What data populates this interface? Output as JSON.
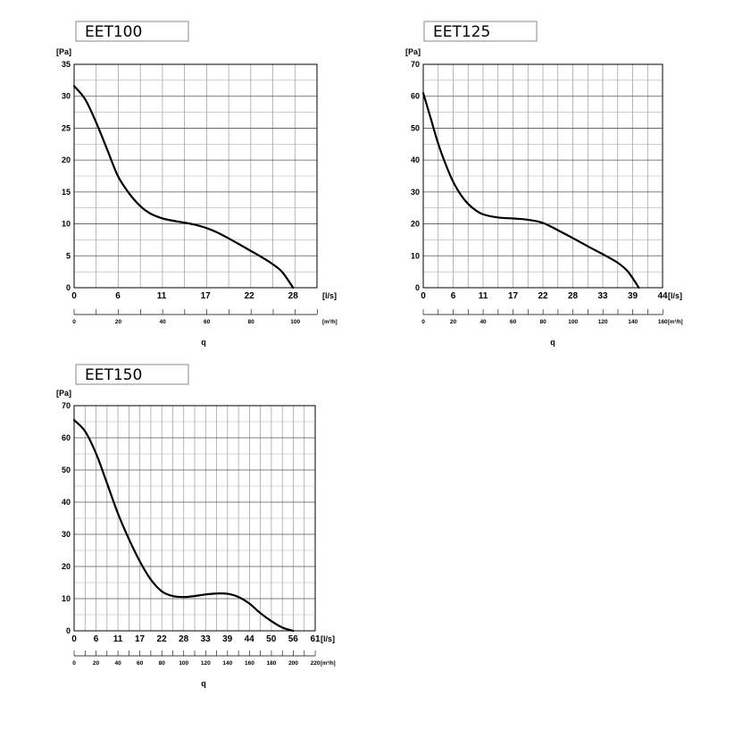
{
  "chart_data": [
    {
      "type": "line",
      "title": "EET100",
      "ylabel": "[Pa]",
      "xlabel": "[l/s]",
      "x2label": "[m³/h]",
      "axis_label": "q",
      "ylim": [
        0,
        35
      ],
      "yticks": [
        "0",
        "5",
        "10",
        "15",
        "20",
        "25",
        "30",
        "35"
      ],
      "xlim": [
        0,
        30.5
      ],
      "xticks": [
        {
          "value": 0,
          "label": "0"
        },
        {
          "value": 5.5,
          "label": "6"
        },
        {
          "value": 11,
          "label": "11"
        },
        {
          "value": 16.5,
          "label": "17"
        },
        {
          "value": 22,
          "label": "22"
        },
        {
          "value": 27.5,
          "label": "28"
        }
      ],
      "x2lim": [
        0,
        110
      ],
      "x2ticks": [
        "0",
        "20",
        "40",
        "60",
        "80",
        "100"
      ],
      "grid": true,
      "series": [
        {
          "x": [
            0,
            1.4,
            2.8,
            4.2,
            5.5,
            6.9,
            8.3,
            9.6,
            11,
            12.4,
            13.8,
            15.1,
            16.5,
            17.9,
            19.3,
            20.6,
            22,
            23.4,
            24.8,
            26.1,
            27.5
          ],
          "y": [
            31.6,
            29.5,
            25.8,
            21.5,
            17.5,
            14.8,
            12.8,
            11.6,
            10.9,
            10.5,
            10.2,
            9.9,
            9.4,
            8.7,
            7.8,
            6.9,
            5.9,
            4.9,
            3.8,
            2.5,
            0
          ]
        }
      ]
    },
    {
      "type": "line",
      "title": "EET125",
      "ylabel": "[Pa]",
      "xlabel": "[l/s]",
      "x2label": "[m³/h]",
      "axis_label": "q",
      "ylim": [
        0,
        70
      ],
      "yticks": [
        "0",
        "10",
        "20",
        "30",
        "40",
        "50",
        "60",
        "70"
      ],
      "xlim": [
        0,
        44.4
      ],
      "xticks": [
        {
          "value": 0,
          "label": "0"
        },
        {
          "value": 5.55,
          "label": "6"
        },
        {
          "value": 11.1,
          "label": "11"
        },
        {
          "value": 16.65,
          "label": "17"
        },
        {
          "value": 22.2,
          "label": "22"
        },
        {
          "value": 27.75,
          "label": "28"
        },
        {
          "value": 33.3,
          "label": "33"
        },
        {
          "value": 38.85,
          "label": "39"
        },
        {
          "value": 44.4,
          "label": "44"
        }
      ],
      "x2lim": [
        0,
        160
      ],
      "x2ticks": [
        "0",
        "20",
        "40",
        "60",
        "80",
        "100",
        "120",
        "140",
        "160"
      ],
      "grid": true,
      "series": [
        {
          "x": [
            0,
            1.4,
            2.8,
            4.2,
            5.6,
            7,
            8.3,
            9.7,
            11.1,
            13.9,
            16.7,
            19.4,
            22.2,
            25,
            27.8,
            30.5,
            33.3,
            36.1,
            38,
            40
          ],
          "y": [
            61,
            53,
            45,
            38.5,
            33,
            29,
            26.3,
            24.3,
            23,
            22,
            21.7,
            21.3,
            20.3,
            18,
            15.5,
            13,
            10.5,
            7.8,
            5,
            0
          ]
        }
      ]
    },
    {
      "type": "line",
      "title": "EET150",
      "ylabel": "[Pa]",
      "xlabel": "[l/s]",
      "x2label": "[m³/h]",
      "axis_label": "q",
      "ylim": [
        0,
        70
      ],
      "yticks": [
        "0",
        "10",
        "20",
        "30",
        "40",
        "50",
        "60",
        "70"
      ],
      "xlim": [
        0,
        61.1
      ],
      "xticks": [
        {
          "value": 0,
          "label": "0"
        },
        {
          "value": 5.55,
          "label": "6"
        },
        {
          "value": 11.1,
          "label": "11"
        },
        {
          "value": 16.65,
          "label": "17"
        },
        {
          "value": 22.2,
          "label": "22"
        },
        {
          "value": 27.75,
          "label": "28"
        },
        {
          "value": 33.3,
          "label": "33"
        },
        {
          "value": 38.85,
          "label": "39"
        },
        {
          "value": 44.4,
          "label": "44"
        },
        {
          "value": 49.95,
          "label": "50"
        },
        {
          "value": 55.5,
          "label": "56"
        },
        {
          "value": 61.1,
          "label": "61"
        }
      ],
      "x2lim": [
        0,
        220
      ],
      "x2ticks": [
        "0",
        "20",
        "40",
        "60",
        "80",
        "100",
        "120",
        "140",
        "160",
        "180",
        "200",
        "220"
      ],
      "grid": true,
      "series": [
        {
          "x": [
            0,
            2.8,
            5.6,
            8.3,
            11.1,
            13.9,
            16.7,
            19.4,
            22.2,
            25,
            27.8,
            30.5,
            33.3,
            36.1,
            38.9,
            41.7,
            44.4,
            47.2,
            50,
            52.8,
            55.5
          ],
          "y": [
            65.5,
            62,
            55,
            46,
            36.5,
            28.5,
            21.5,
            16,
            12.3,
            10.8,
            10.5,
            10.8,
            11.3,
            11.6,
            11.5,
            10.5,
            8.5,
            5.5,
            3.0,
            1.0,
            0
          ]
        }
      ]
    }
  ]
}
